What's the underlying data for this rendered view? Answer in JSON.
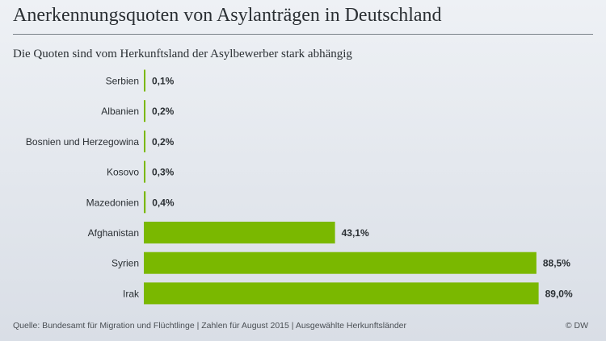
{
  "header": {
    "title": "Anerkennungsquoten von Asylanträgen in Deutschland",
    "subtitle": "Die Quoten sind vom Herkunftsland der Asylbewerber stark abhängig"
  },
  "footer": {
    "source": "Quelle: Bundesamt für Migration und Flüchtlinge | Zahlen für August 2015 | Ausgewählte Herkunftsländer",
    "brand": "© DW"
  },
  "colors": {
    "bar": "#7ab800",
    "text": "#2a2f33"
  },
  "chart_data": {
    "type": "bar",
    "orientation": "horizontal",
    "title": "Anerkennungsquoten von Asylanträgen in Deutschland",
    "subtitle": "Die Quoten sind vom Herkunftsland der Asylbewerber stark abhängig",
    "categories": [
      "Serbien",
      "Albanien",
      "Bosnien und Herzegowina",
      "Kosovo",
      "Mazedonien",
      "Afghanistan",
      "Syrien",
      "Irak"
    ],
    "values": [
      0.1,
      0.2,
      0.2,
      0.3,
      0.4,
      43.1,
      88.5,
      89.0
    ],
    "labels": [
      "0,1%",
      "0,2%",
      "0,2%",
      "0,3%",
      "0,4%",
      "43,1%",
      "88,5%",
      "89,0%"
    ],
    "unit": "%",
    "xlim": [
      0,
      100
    ],
    "grid": false,
    "legend": "none"
  }
}
